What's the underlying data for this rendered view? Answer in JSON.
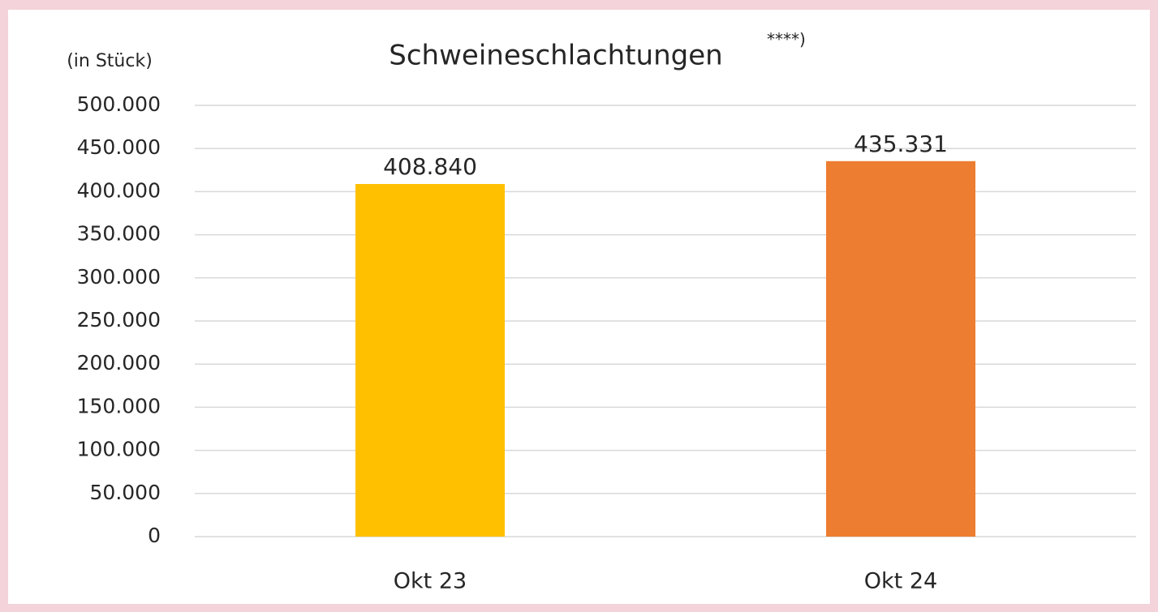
{
  "chart_data": {
    "type": "bar",
    "title": "Schweineschlachtungen",
    "title_superscript": "****)",
    "ylabel": "(in Stück)",
    "categories": [
      "Okt 23",
      "Okt 24"
    ],
    "values": [
      408840,
      435331
    ],
    "value_labels": [
      "408.840",
      "435.331"
    ],
    "colors": [
      "#ffc000",
      "#ed7d31"
    ],
    "ylim": [
      0,
      500000
    ],
    "yticks": [
      0,
      {
        "value": 50000,
        "label": "50.000"
      },
      {
        "value": 100000,
        "label": "100.000"
      },
      {
        "value": 150000,
        "label": "150.000"
      },
      {
        "value": 200000,
        "label": "200.000"
      },
      {
        "value": 250000,
        "label": "250.000"
      },
      {
        "value": 300000,
        "label": "300.000"
      },
      {
        "value": 350000,
        "label": "350.000"
      },
      {
        "value": 400000,
        "label": "400.000"
      },
      {
        "value": 450000,
        "label": "450.000"
      },
      {
        "value": 500000,
        "label": "500.000"
      }
    ],
    "grid": true
  }
}
